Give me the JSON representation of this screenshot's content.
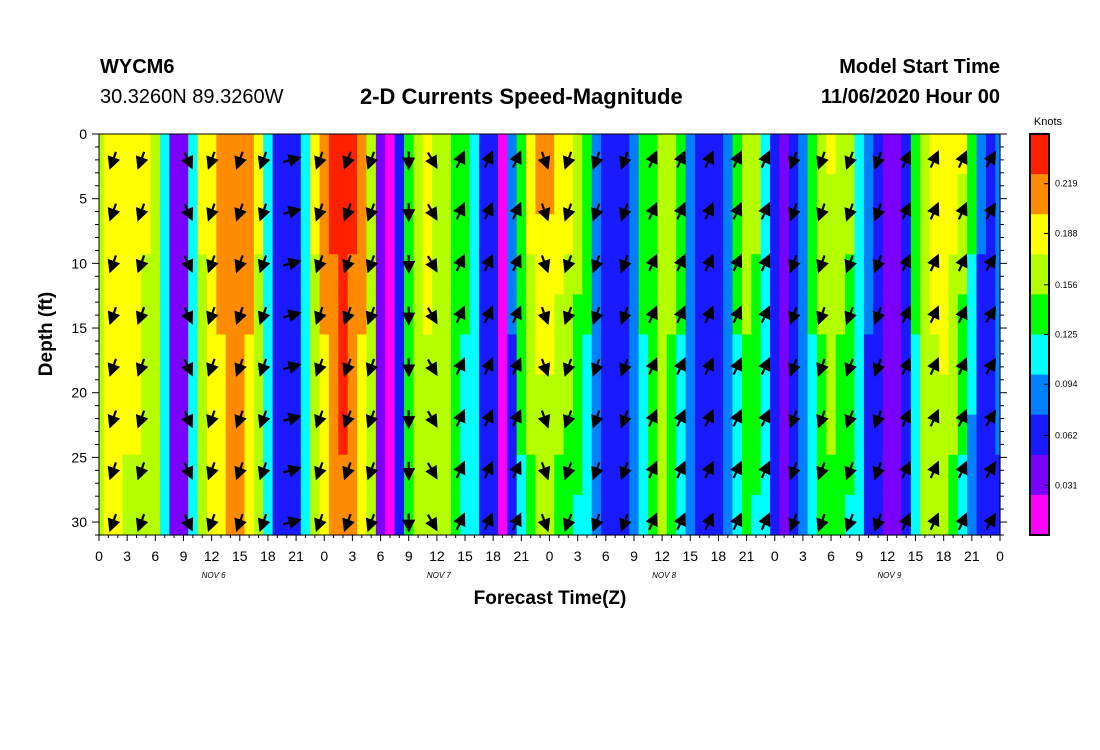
{
  "header": {
    "station": "WYCM6",
    "latlon": "30.3260N 89.3260W",
    "title": "2-D Currents Speed-Magnitude",
    "model_start_label": "Model Start Time",
    "model_start_value": "11/06/2020 Hour 00"
  },
  "chart_data": {
    "type": "heatmap",
    "title": "2-D Currents Speed-Magnitude",
    "xlabel": "Forecast Time(Z)",
    "ylabel": "Depth (ft)",
    "colorbar_label": "Knots",
    "x_hours_range": [
      0,
      96
    ],
    "y_depth_range": [
      0,
      31
    ],
    "y_inverted": true,
    "x_tick_labels": [
      "0",
      "3",
      "6",
      "9",
      "12",
      "15",
      "18",
      "21",
      "0",
      "3",
      "6",
      "9",
      "12",
      "15",
      "18",
      "21",
      "0",
      "3",
      "6",
      "9",
      "12",
      "15",
      "18",
      "21",
      "0",
      "3",
      "6",
      "9",
      "12",
      "15",
      "18",
      "21",
      "0"
    ],
    "y_ticks": [
      0,
      5,
      10,
      15,
      20,
      25,
      30
    ],
    "day_labels": [
      {
        "text": "NOV  6",
        "hour": 12
      },
      {
        "text": "NOV  7",
        "hour": 36
      },
      {
        "text": "NOV  8",
        "hour": 60
      },
      {
        "text": "NOV  9",
        "hour": 84
      }
    ],
    "colorbar_ticks": [
      "0.219",
      "0.188",
      "0.156",
      "0.125",
      "0.094",
      "0.062",
      "0.031"
    ],
    "colorbar_range": [
      0,
      0.25
    ],
    "colors": [
      "#ff00ff",
      "#7a00ff",
      "#1a1aff",
      "#0080ff",
      "#00ffff",
      "#00ff00",
      "#b4ff00",
      "#ffff00",
      "#ff8c00",
      "#ff2000"
    ],
    "speed_profile_hours": [
      0,
      1,
      2,
      3,
      4,
      5,
      6,
      7,
      8,
      9,
      10,
      11,
      12,
      13,
      14,
      15,
      16,
      17,
      18,
      19,
      20,
      21,
      22,
      23,
      24,
      25,
      26,
      27,
      28,
      29,
      30,
      31,
      32,
      33,
      34,
      35,
      36,
      37,
      38,
      39,
      40,
      41,
      42,
      43,
      44,
      45,
      46,
      47,
      48,
      49,
      50,
      51,
      52,
      53,
      54,
      55,
      56,
      57,
      58,
      59,
      60,
      61,
      62,
      63,
      64,
      65,
      66,
      67,
      68,
      69,
      70,
      71,
      72,
      73,
      74,
      75,
      76,
      77,
      78,
      79,
      80,
      81,
      82,
      83,
      84,
      85,
      86,
      87,
      88,
      89,
      90,
      91,
      92,
      93,
      94,
      95,
      96
    ],
    "speed_surface": [
      0.16,
      0.2,
      0.2,
      0.19,
      0.19,
      0.18,
      0.16,
      0.1,
      0.03,
      0.03,
      0.1,
      0.18,
      0.2,
      0.21,
      0.22,
      0.22,
      0.21,
      0.18,
      0.12,
      0.06,
      0.05,
      0.06,
      0.12,
      0.18,
      0.21,
      0.23,
      0.24,
      0.23,
      0.21,
      0.17,
      0.03,
      0.02,
      0.07,
      0.14,
      0.17,
      0.18,
      0.17,
      0.16,
      0.15,
      0.13,
      0.11,
      0.06,
      0.06,
      0.02,
      0.08,
      0.15,
      0.19,
      0.21,
      0.21,
      0.2,
      0.19,
      0.17,
      0.14,
      0.1,
      0.06,
      0.05,
      0.06,
      0.09,
      0.13,
      0.15,
      0.17,
      0.16,
      0.13,
      0.08,
      0.06,
      0.05,
      0.06,
      0.09,
      0.14,
      0.17,
      0.16,
      0.12,
      0.06,
      0.04,
      0.05,
      0.09,
      0.14,
      0.17,
      0.18,
      0.17,
      0.16,
      0.12,
      0.08,
      0.05,
      0.03,
      0.04,
      0.07,
      0.13,
      0.17,
      0.19,
      0.2,
      0.19,
      0.18,
      0.14,
      0.08,
      0.07,
      0.1
    ],
    "speed_bottom": [
      0.15,
      0.18,
      0.18,
      0.17,
      0.17,
      0.16,
      0.15,
      0.1,
      0.03,
      0.03,
      0.1,
      0.16,
      0.18,
      0.19,
      0.2,
      0.2,
      0.19,
      0.16,
      0.11,
      0.06,
      0.05,
      0.06,
      0.11,
      0.16,
      0.19,
      0.21,
      0.22,
      0.21,
      0.19,
      0.15,
      0.03,
      0.02,
      0.07,
      0.13,
      0.16,
      0.17,
      0.16,
      0.15,
      0.14,
      0.12,
      0.1,
      0.06,
      0.06,
      0.02,
      0.07,
      0.12,
      0.14,
      0.15,
      0.15,
      0.14,
      0.13,
      0.12,
      0.11,
      0.09,
      0.06,
      0.05,
      0.06,
      0.09,
      0.12,
      0.14,
      0.15,
      0.14,
      0.12,
      0.08,
      0.06,
      0.05,
      0.06,
      0.08,
      0.11,
      0.13,
      0.12,
      0.1,
      0.06,
      0.04,
      0.05,
      0.08,
      0.11,
      0.13,
      0.14,
      0.13,
      0.12,
      0.1,
      0.07,
      0.05,
      0.03,
      0.04,
      0.07,
      0.12,
      0.15,
      0.16,
      0.16,
      0.14,
      0.11,
      0.08,
      0.06,
      0.05,
      0.07
    ],
    "vector_hours": [
      1.5,
      4.5,
      9.5,
      12,
      15,
      17.5,
      20.5,
      23.5,
      26.5,
      29,
      33,
      35.5,
      38.5,
      41.5,
      44.5,
      47.5,
      50,
      53,
      56,
      59,
      62,
      65,
      68,
      71,
      74,
      77,
      80,
      83,
      86,
      89,
      92,
      95
    ],
    "vector_depths": [
      2,
      6,
      10,
      14,
      18,
      22,
      26,
      30
    ],
    "vector_direction_deg": [
      200,
      200,
      155,
      200,
      200,
      200,
      75,
      200,
      200,
      200,
      180,
      150,
      25,
      25,
      25,
      160,
      200,
      200,
      200,
      25,
      25,
      25,
      25,
      25,
      200,
      200,
      200,
      200,
      25,
      25,
      25,
      30
    ]
  }
}
